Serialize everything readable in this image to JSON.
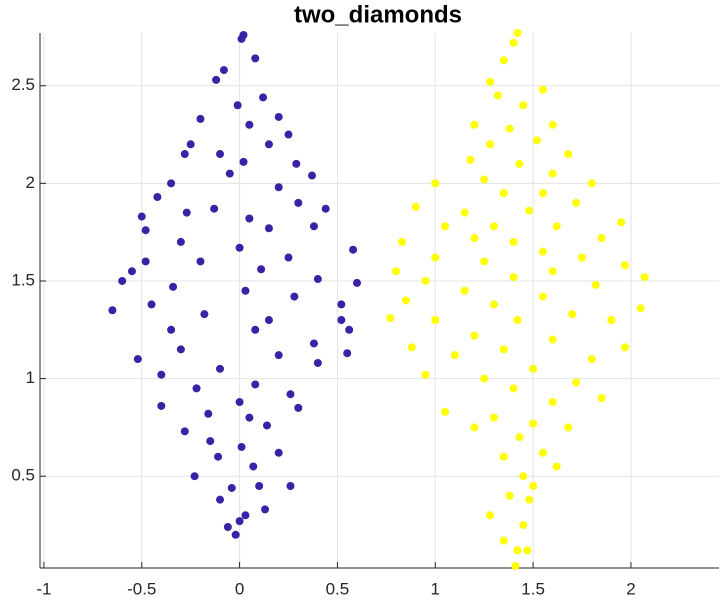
{
  "chart_data": {
    "type": "scatter",
    "title": "two_diamonds",
    "xlim": [
      -1.02,
      2.45
    ],
    "ylim": [
      0.03,
      2.77
    ],
    "xticks": [
      -1,
      -0.5,
      0,
      0.5,
      1,
      1.5,
      2
    ],
    "yticks": [
      0.5,
      1,
      1.5,
      2,
      2.5
    ],
    "grid": true,
    "series": [
      {
        "color": "#3b21a6",
        "x": [
          0.02,
          0.01,
          0.08,
          -0.08,
          -0.12,
          0.12,
          -0.01,
          0.2,
          -0.2,
          0.05,
          0.25,
          -0.25,
          0.15,
          -0.1,
          0.29,
          -0.28,
          0.02,
          -0.05,
          0.37,
          -0.35,
          0.2,
          -0.42,
          0.3,
          -0.13,
          0.05,
          0.44,
          -0.5,
          -0.27,
          0.15,
          -0.48,
          0.38,
          -0.3,
          0.0,
          0.58,
          -0.2,
          0.25,
          -0.48,
          0.11,
          -0.55,
          -0.6,
          0.4,
          0.6,
          -0.34,
          0.03,
          -0.65,
          0.28,
          -0.45,
          0.52,
          -0.18,
          0.15,
          0.52,
          -0.35,
          0.56,
          -0.52,
          0.08,
          0.38,
          -0.3,
          0.2,
          0.55,
          -0.1,
          0.4,
          -0.4,
          0.08,
          -0.22,
          0.26,
          -0.4,
          0.0,
          -0.16,
          0.3,
          0.05,
          -0.28,
          0.14,
          -0.15,
          0.01,
          0.2,
          -0.11,
          0.07,
          -0.23,
          0.1,
          -0.04,
          0.26,
          -0.1,
          0.13,
          0.03,
          -0.06,
          0.0,
          -0.02
        ],
        "values": [
          2.76,
          2.74,
          2.64,
          2.58,
          2.53,
          2.44,
          2.4,
          2.34,
          2.33,
          2.3,
          2.25,
          2.2,
          2.2,
          2.15,
          2.1,
          2.15,
          2.11,
          2.05,
          2.04,
          2.0,
          1.98,
          1.93,
          1.9,
          1.87,
          1.82,
          1.87,
          1.83,
          1.85,
          1.77,
          1.76,
          1.78,
          1.7,
          1.67,
          1.66,
          1.6,
          1.62,
          1.6,
          1.56,
          1.55,
          1.5,
          1.51,
          1.49,
          1.47,
          1.45,
          1.35,
          1.42,
          1.38,
          1.38,
          1.33,
          1.3,
          1.3,
          1.25,
          1.25,
          1.1,
          1.25,
          1.18,
          1.15,
          1.12,
          1.13,
          1.05,
          1.08,
          1.02,
          0.97,
          0.95,
          0.92,
          0.86,
          0.88,
          0.82,
          0.85,
          0.8,
          0.73,
          0.76,
          0.68,
          0.65,
          0.62,
          0.6,
          0.55,
          0.5,
          0.45,
          0.44,
          0.45,
          0.38,
          0.33,
          0.3,
          0.24,
          0.27,
          0.2
        ]
      },
      {
        "color": "#ffff00",
        "x": [
          1.42,
          1.4,
          1.35,
          1.28,
          1.55,
          1.32,
          1.45,
          1.2,
          1.6,
          1.38,
          1.52,
          1.28,
          1.68,
          1.18,
          1.43,
          1.6,
          1.0,
          1.25,
          1.8,
          1.35,
          1.55,
          0.9,
          1.15,
          1.72,
          1.48,
          1.95,
          1.05,
          1.3,
          1.62,
          0.83,
          1.2,
          1.85,
          1.4,
          1.0,
          1.55,
          1.75,
          1.97,
          0.8,
          1.25,
          1.6,
          2.07,
          0.95,
          1.4,
          1.82,
          1.15,
          0.85,
          1.55,
          2.05,
          1.3,
          0.77,
          1.7,
          1.0,
          1.42,
          1.9,
          1.2,
          0.88,
          1.6,
          1.35,
          1.97,
          1.1,
          1.8,
          0.95,
          1.5,
          1.25,
          1.72,
          1.4,
          1.85,
          1.05,
          1.6,
          1.3,
          1.5,
          1.2,
          1.68,
          1.43,
          1.55,
          1.35,
          1.62,
          1.45,
          1.5,
          1.38,
          1.48,
          1.28,
          1.45,
          1.35,
          1.42,
          1.47,
          1.41
        ],
        "values": [
          2.77,
          2.72,
          2.63,
          2.52,
          2.48,
          2.45,
          2.4,
          2.3,
          2.3,
          2.28,
          2.22,
          2.2,
          2.15,
          2.12,
          2.1,
          2.05,
          2.0,
          2.02,
          2.0,
          1.95,
          1.95,
          1.88,
          1.85,
          1.9,
          1.86,
          1.8,
          1.78,
          1.78,
          1.78,
          1.7,
          1.72,
          1.72,
          1.7,
          1.62,
          1.65,
          1.62,
          1.58,
          1.55,
          1.6,
          1.55,
          1.52,
          1.5,
          1.52,
          1.48,
          1.45,
          1.4,
          1.42,
          1.36,
          1.38,
          1.31,
          1.33,
          1.3,
          1.3,
          1.3,
          1.22,
          1.16,
          1.2,
          1.15,
          1.16,
          1.12,
          1.1,
          1.02,
          1.05,
          1.0,
          0.98,
          0.95,
          0.9,
          0.83,
          0.88,
          0.8,
          0.77,
          0.75,
          0.75,
          0.7,
          0.62,
          0.6,
          0.55,
          0.5,
          0.45,
          0.4,
          0.38,
          0.3,
          0.25,
          0.17,
          0.12,
          0.12,
          0.04
        ]
      }
    ]
  }
}
